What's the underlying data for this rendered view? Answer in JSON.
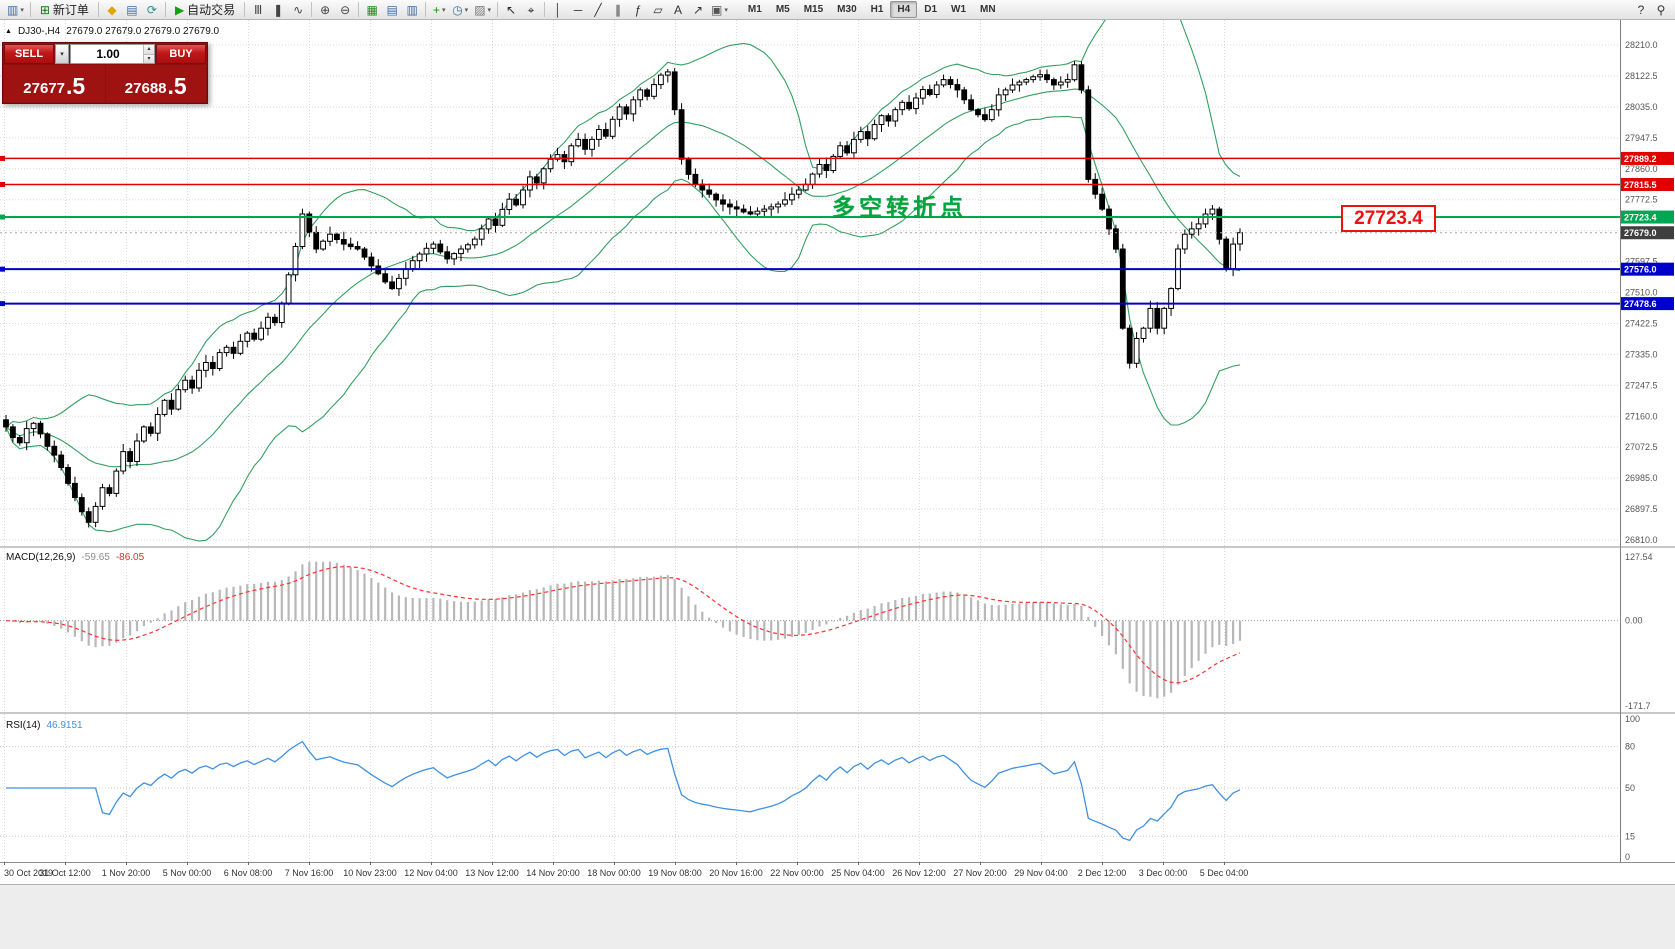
{
  "icons": {
    "collapse_triangle": "▲",
    "chevron_down": "▾",
    "spin_up": "▴",
    "spin_down": "▾"
  },
  "toolbar": {
    "groups": [
      {
        "items": [
          {
            "name": "new-chart",
            "glyph": "▥",
            "color": "#3b6ea5",
            "caret": true
          }
        ]
      },
      {
        "items": [
          {
            "name": "new-order",
            "glyph": "⊞",
            "color": "#167016",
            "label": "新订单"
          }
        ]
      },
      {
        "items": [
          {
            "name": "profiles",
            "glyph": "◆",
            "color": "#e2a400"
          },
          {
            "name": "market-watch",
            "glyph": "▤",
            "color": "#3b6ea5"
          },
          {
            "name": "refresh",
            "glyph": "⟳",
            "color": "#2e8b8b"
          }
        ]
      },
      {
        "items": [
          {
            "name": "auto-trading",
            "glyph": "▶",
            "color": "#10a010",
            "label": "自动交易"
          }
        ]
      },
      {
        "items": [
          {
            "name": "bar-chart",
            "glyph": "Ⅲ",
            "color": "#444"
          },
          {
            "name": "candle-chart",
            "glyph": "❚",
            "color": "#444"
          },
          {
            "name": "line-chart",
            "glyph": "∿",
            "color": "#444"
          }
        ]
      },
      {
        "items": [
          {
            "name": "zoom-in",
            "glyph": "⊕",
            "color": "#444"
          },
          {
            "name": "zoom-out",
            "glyph": "⊖",
            "color": "#444"
          }
        ]
      },
      {
        "items": [
          {
            "name": "tile-windows",
            "glyph": "▦",
            "color": "#1f8a1f"
          },
          {
            "name": "cascade-windows",
            "glyph": "▤",
            "color": "#3b6ea5"
          },
          {
            "name": "arrange-windows",
            "glyph": "▥",
            "color": "#3b6ea5"
          }
        ]
      },
      {
        "items": [
          {
            "name": "indicators",
            "glyph": "+",
            "color": "#1f8a1f",
            "caret": true
          },
          {
            "name": "periods",
            "glyph": "◷",
            "color": "#3b6ea5",
            "caret": true
          },
          {
            "name": "templates",
            "glyph": "▨",
            "color": "#777",
            "caret": true
          }
        ]
      },
      {
        "items": [
          {
            "name": "cursor",
            "glyph": "↖",
            "color": "#222"
          },
          {
            "name": "crosshair",
            "glyph": "⌖",
            "color": "#222"
          }
        ]
      },
      {
        "items": [
          {
            "name": "vertical-line",
            "glyph": "│",
            "color": "#333"
          },
          {
            "name": "horizontal-line",
            "glyph": "─",
            "color": "#333"
          },
          {
            "name": "trendline",
            "glyph": "╱",
            "color": "#333"
          },
          {
            "name": "equidistant-channel",
            "glyph": "∥",
            "color": "#333"
          },
          {
            "name": "fibonacci",
            "glyph": "ƒ",
            "color": "#333"
          },
          {
            "name": "shapes",
            "glyph": "▱",
            "color": "#333"
          },
          {
            "name": "text-tool",
            "glyph": "A",
            "color": "#333"
          },
          {
            "name": "arrow-tool",
            "glyph": "↗",
            "color": "#333"
          },
          {
            "name": "objects-list",
            "glyph": "▣",
            "color": "#555",
            "caret": true
          }
        ]
      }
    ],
    "timeframes": [
      "M1",
      "M5",
      "M15",
      "M30",
      "H1",
      "H4",
      "D1",
      "W1",
      "MN"
    ],
    "active_timeframe": "H4",
    "right_icons": [
      {
        "name": "help",
        "glyph": "?",
        "color": "#333"
      },
      {
        "name": "search",
        "glyph": "⚲",
        "color": "#333"
      }
    ]
  },
  "symbol_header": {
    "symbol": "DJ30-,H4",
    "ohlc": "27679.0 27679.0 27679.0 27679.0"
  },
  "trade_panel": {
    "sell_label": "SELL",
    "buy_label": "BUY",
    "volume": "1.00",
    "sell_price_base": "27677",
    "price_suffix_sell": ".5",
    "buy_price_base": "27688",
    "price_suffix_buy": ".5"
  },
  "annotation": {
    "text": "多空转折点"
  },
  "callout": {
    "text": "27723.4"
  },
  "macd_label": {
    "title": "MACD(12,26,9)",
    "main": "-59.65",
    "signal": "-86.05"
  },
  "rsi_label": {
    "title": "RSI(14)",
    "value": "46.9151"
  },
  "colors": {
    "grid": "#d9d9d9",
    "bollinger": "#33a05f",
    "macd_hist": "#b8b8b8",
    "macd_signal": "#ff3232",
    "rsi_line": "#4091e2",
    "bull": "#ffffff",
    "bear": "#000000",
    "level_red": "#e00000",
    "level_green": "#00a651",
    "level_blue": "#0000cc",
    "annotation": "#00a63c",
    "callout": "#ee1111"
  },
  "chart_data": {
    "type": "candlestick",
    "symbol": "DJ30-",
    "timeframe": "H4",
    "y_max": 28210.0,
    "y_step": 87.5,
    "y_ticks": [
      "28210.0",
      "28122.5",
      "28035.0",
      "27947.5",
      "27860.0",
      "27772.5",
      "27685.0",
      "27597.5",
      "27510.0",
      "27422.5",
      "27335.0",
      "27247.5",
      "27160.0",
      "27072.5",
      "26985.0",
      "26897.5",
      "26810.0"
    ],
    "x_labels": [
      "30 Oct 2019",
      "31 Oct 12:00",
      "1 Nov 20:00",
      "5 Nov 00:00",
      "6 Nov 08:00",
      "7 Nov 16:00",
      "10 Nov 23:00",
      "12 Nov 04:00",
      "13 Nov 12:00",
      "14 Nov 20:00",
      "18 Nov 00:00",
      "19 Nov 08:00",
      "20 Nov 16:00",
      "22 Nov 00:00",
      "25 Nov 04:00",
      "26 Nov 12:00",
      "27 Nov 20:00",
      "29 Nov 04:00",
      "2 Dec 12:00",
      "3 Dec 00:00",
      "5 Dec 04:00"
    ],
    "closes": [
      27130,
      27100,
      27085,
      27125,
      27140,
      27110,
      27075,
      27050,
      27015,
      26970,
      26930,
      26890,
      26860,
      26905,
      26958,
      26942,
      27005,
      27060,
      27032,
      27090,
      27130,
      27112,
      27165,
      27205,
      27180,
      27235,
      27262,
      27240,
      27290,
      27312,
      27295,
      27340,
      27355,
      27338,
      27372,
      27395,
      27378,
      27409,
      27440,
      27425,
      27480,
      27560,
      27640,
      27732,
      27680,
      27633,
      27655,
      27675,
      27660,
      27647,
      27640,
      27633,
      27610,
      27585,
      27563,
      27540,
      27521,
      27550,
      27577,
      27600,
      27619,
      27635,
      27647,
      27625,
      27605,
      27620,
      27633,
      27645,
      27661,
      27690,
      27718,
      27700,
      27745,
      27774,
      27758,
      27800,
      27837,
      27820,
      27860,
      27887,
      27900,
      27880,
      27925,
      27943,
      27915,
      27943,
      27971,
      27952,
      28000,
      28035,
      28015,
      28055,
      28083,
      28065,
      28098,
      28125,
      28134,
      28027,
      27887,
      27844,
      27816,
      27800,
      27788,
      27772,
      27760,
      27752,
      27746,
      27738,
      27732,
      27740,
      27746,
      27752,
      27760,
      27772,
      27788,
      27800,
      27816,
      27845,
      27872,
      27855,
      27895,
      27925,
      27905,
      27943,
      27965,
      27945,
      27985,
      28010,
      27995,
      28027,
      28048,
      28030,
      28060,
      28084,
      28070,
      28097,
      28112,
      28098,
      28083,
      28055,
      28027,
      28013,
      27999,
      28027,
      28069,
      28083,
      28097,
      28105,
      28112,
      28120,
      28126,
      28112,
      28097,
      28105,
      28112,
      28154,
      28083,
      27830,
      27788,
      27746,
      27690,
      27633,
      27409,
      27310,
      27380,
      27409,
      27465,
      27409,
      27465,
      27521,
      27633,
      27675,
      27690,
      27704,
      27732,
      27746,
      27661,
      27577,
      27647,
      27679
    ],
    "levels": [
      {
        "price": 27889.2,
        "label": "27889.2",
        "color": "#e00000",
        "width": 1.5
      },
      {
        "price": 27815.5,
        "label": "27815.5",
        "color": "#e00000",
        "width": 1.5
      },
      {
        "price": 27723.4,
        "label": "27723.4",
        "color": "#00a651",
        "width": 2
      },
      {
        "price": 27576.0,
        "label": "27576.0",
        "color": "#0000cc",
        "width": 2
      },
      {
        "price": 27478.6,
        "label": "27478.6",
        "color": "#0000cc",
        "width": 2
      }
    ],
    "current_price": 27679.0,
    "current_price_label": "27679.0",
    "bollinger": {
      "period": 20,
      "deviations": 2
    },
    "macd": {
      "fast": 12,
      "slow": 26,
      "signal": 9,
      "axis_labels": [
        "127.54",
        "0.00",
        "-171.7"
      ]
    },
    "rsi": {
      "period": 14,
      "levels": [
        80,
        50,
        15
      ],
      "axis_labels": [
        "100",
        "80",
        "50",
        "15",
        "0"
      ]
    }
  }
}
